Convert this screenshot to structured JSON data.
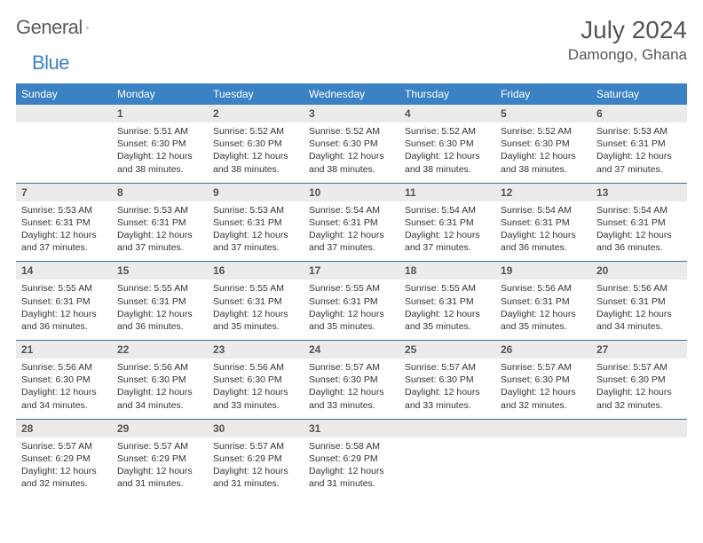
{
  "brand": {
    "part1": "General",
    "part2": "Blue"
  },
  "header": {
    "title": "July 2024",
    "location": "Damongo, Ghana"
  },
  "styling": {
    "header_bg": "#3b82c4",
    "header_fg": "#ffffff",
    "daynum_bg": "#ebebeb",
    "daynum_fg": "#555555",
    "row_divider": "#3b6fa0",
    "body_text": "#333333",
    "title_color": "#555555",
    "logo_gray": "#5b5b5b",
    "logo_blue": "#3b82c4",
    "header_fontsize": 12,
    "body_fontsize": 10.5,
    "title_fontsize": 28,
    "location_fontsize": 17
  },
  "weekdays": [
    "Sunday",
    "Monday",
    "Tuesday",
    "Wednesday",
    "Thursday",
    "Friday",
    "Saturday"
  ],
  "weeks": [
    {
      "nums": [
        "",
        "1",
        "2",
        "3",
        "4",
        "5",
        "6"
      ],
      "cells": [
        null,
        {
          "sunrise": "Sunrise: 5:51 AM",
          "sunset": "Sunset: 6:30 PM",
          "day1": "Daylight: 12 hours",
          "day2": "and 38 minutes."
        },
        {
          "sunrise": "Sunrise: 5:52 AM",
          "sunset": "Sunset: 6:30 PM",
          "day1": "Daylight: 12 hours",
          "day2": "and 38 minutes."
        },
        {
          "sunrise": "Sunrise: 5:52 AM",
          "sunset": "Sunset: 6:30 PM",
          "day1": "Daylight: 12 hours",
          "day2": "and 38 minutes."
        },
        {
          "sunrise": "Sunrise: 5:52 AM",
          "sunset": "Sunset: 6:30 PM",
          "day1": "Daylight: 12 hours",
          "day2": "and 38 minutes."
        },
        {
          "sunrise": "Sunrise: 5:52 AM",
          "sunset": "Sunset: 6:30 PM",
          "day1": "Daylight: 12 hours",
          "day2": "and 38 minutes."
        },
        {
          "sunrise": "Sunrise: 5:53 AM",
          "sunset": "Sunset: 6:31 PM",
          "day1": "Daylight: 12 hours",
          "day2": "and 37 minutes."
        }
      ]
    },
    {
      "nums": [
        "7",
        "8",
        "9",
        "10",
        "11",
        "12",
        "13"
      ],
      "cells": [
        {
          "sunrise": "Sunrise: 5:53 AM",
          "sunset": "Sunset: 6:31 PM",
          "day1": "Daylight: 12 hours",
          "day2": "and 37 minutes."
        },
        {
          "sunrise": "Sunrise: 5:53 AM",
          "sunset": "Sunset: 6:31 PM",
          "day1": "Daylight: 12 hours",
          "day2": "and 37 minutes."
        },
        {
          "sunrise": "Sunrise: 5:53 AM",
          "sunset": "Sunset: 6:31 PM",
          "day1": "Daylight: 12 hours",
          "day2": "and 37 minutes."
        },
        {
          "sunrise": "Sunrise: 5:54 AM",
          "sunset": "Sunset: 6:31 PM",
          "day1": "Daylight: 12 hours",
          "day2": "and 37 minutes."
        },
        {
          "sunrise": "Sunrise: 5:54 AM",
          "sunset": "Sunset: 6:31 PM",
          "day1": "Daylight: 12 hours",
          "day2": "and 37 minutes."
        },
        {
          "sunrise": "Sunrise: 5:54 AM",
          "sunset": "Sunset: 6:31 PM",
          "day1": "Daylight: 12 hours",
          "day2": "and 36 minutes."
        },
        {
          "sunrise": "Sunrise: 5:54 AM",
          "sunset": "Sunset: 6:31 PM",
          "day1": "Daylight: 12 hours",
          "day2": "and 36 minutes."
        }
      ]
    },
    {
      "nums": [
        "14",
        "15",
        "16",
        "17",
        "18",
        "19",
        "20"
      ],
      "cells": [
        {
          "sunrise": "Sunrise: 5:55 AM",
          "sunset": "Sunset: 6:31 PM",
          "day1": "Daylight: 12 hours",
          "day2": "and 36 minutes."
        },
        {
          "sunrise": "Sunrise: 5:55 AM",
          "sunset": "Sunset: 6:31 PM",
          "day1": "Daylight: 12 hours",
          "day2": "and 36 minutes."
        },
        {
          "sunrise": "Sunrise: 5:55 AM",
          "sunset": "Sunset: 6:31 PM",
          "day1": "Daylight: 12 hours",
          "day2": "and 35 minutes."
        },
        {
          "sunrise": "Sunrise: 5:55 AM",
          "sunset": "Sunset: 6:31 PM",
          "day1": "Daylight: 12 hours",
          "day2": "and 35 minutes."
        },
        {
          "sunrise": "Sunrise: 5:55 AM",
          "sunset": "Sunset: 6:31 PM",
          "day1": "Daylight: 12 hours",
          "day2": "and 35 minutes."
        },
        {
          "sunrise": "Sunrise: 5:56 AM",
          "sunset": "Sunset: 6:31 PM",
          "day1": "Daylight: 12 hours",
          "day2": "and 35 minutes."
        },
        {
          "sunrise": "Sunrise: 5:56 AM",
          "sunset": "Sunset: 6:31 PM",
          "day1": "Daylight: 12 hours",
          "day2": "and 34 minutes."
        }
      ]
    },
    {
      "nums": [
        "21",
        "22",
        "23",
        "24",
        "25",
        "26",
        "27"
      ],
      "cells": [
        {
          "sunrise": "Sunrise: 5:56 AM",
          "sunset": "Sunset: 6:30 PM",
          "day1": "Daylight: 12 hours",
          "day2": "and 34 minutes."
        },
        {
          "sunrise": "Sunrise: 5:56 AM",
          "sunset": "Sunset: 6:30 PM",
          "day1": "Daylight: 12 hours",
          "day2": "and 34 minutes."
        },
        {
          "sunrise": "Sunrise: 5:56 AM",
          "sunset": "Sunset: 6:30 PM",
          "day1": "Daylight: 12 hours",
          "day2": "and 33 minutes."
        },
        {
          "sunrise": "Sunrise: 5:57 AM",
          "sunset": "Sunset: 6:30 PM",
          "day1": "Daylight: 12 hours",
          "day2": "and 33 minutes."
        },
        {
          "sunrise": "Sunrise: 5:57 AM",
          "sunset": "Sunset: 6:30 PM",
          "day1": "Daylight: 12 hours",
          "day2": "and 33 minutes."
        },
        {
          "sunrise": "Sunrise: 5:57 AM",
          "sunset": "Sunset: 6:30 PM",
          "day1": "Daylight: 12 hours",
          "day2": "and 32 minutes."
        },
        {
          "sunrise": "Sunrise: 5:57 AM",
          "sunset": "Sunset: 6:30 PM",
          "day1": "Daylight: 12 hours",
          "day2": "and 32 minutes."
        }
      ]
    },
    {
      "nums": [
        "28",
        "29",
        "30",
        "31",
        "",
        "",
        ""
      ],
      "cells": [
        {
          "sunrise": "Sunrise: 5:57 AM",
          "sunset": "Sunset: 6:29 PM",
          "day1": "Daylight: 12 hours",
          "day2": "and 32 minutes."
        },
        {
          "sunrise": "Sunrise: 5:57 AM",
          "sunset": "Sunset: 6:29 PM",
          "day1": "Daylight: 12 hours",
          "day2": "and 31 minutes."
        },
        {
          "sunrise": "Sunrise: 5:57 AM",
          "sunset": "Sunset: 6:29 PM",
          "day1": "Daylight: 12 hours",
          "day2": "and 31 minutes."
        },
        {
          "sunrise": "Sunrise: 5:58 AM",
          "sunset": "Sunset: 6:29 PM",
          "day1": "Daylight: 12 hours",
          "day2": "and 31 minutes."
        },
        null,
        null,
        null
      ]
    }
  ]
}
